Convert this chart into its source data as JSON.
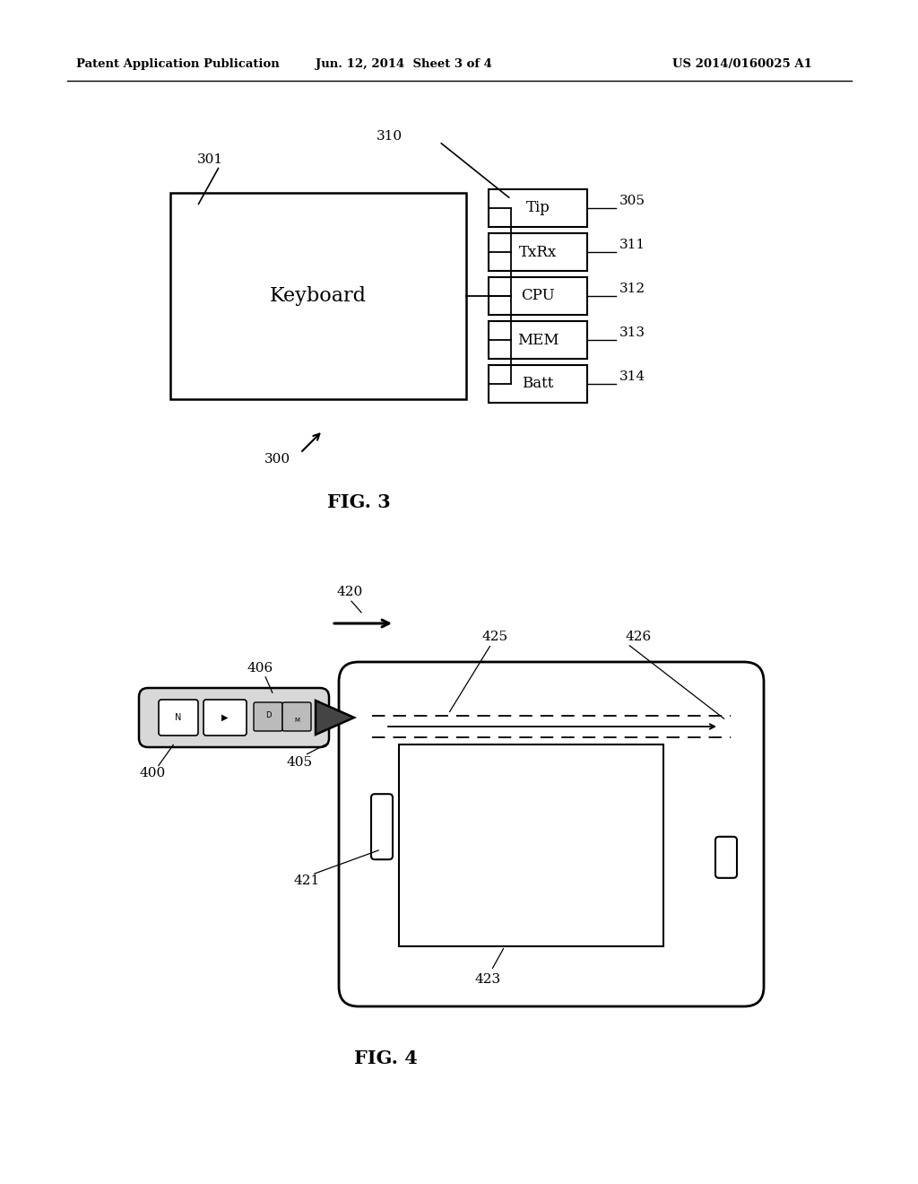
{
  "bg_color": "#ffffff",
  "header_left": "Patent Application Publication",
  "header_mid": "Jun. 12, 2014  Sheet 3 of 4",
  "header_right": "US 2014/0160025 A1",
  "fig3_title": "FIG. 3",
  "fig4_title": "FIG. 4",
  "fig3_keyboard_label": "Keyboard",
  "fig3_boxes": [
    "Tip",
    "TxRx",
    "CPU",
    "MEM",
    "Batt"
  ],
  "fig3_box_labels": [
    "305",
    "311",
    "312",
    "313",
    "314"
  ]
}
